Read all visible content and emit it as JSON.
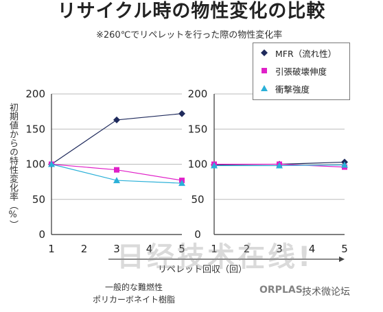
{
  "header": {
    "title": "リサイクル時の物性変化の比較",
    "subtitle": "※260℃でリペレットを行った際の物性変化率"
  },
  "chart_data": [
    {
      "type": "line",
      "x": [
        1,
        3,
        5
      ],
      "xlim": [
        1,
        5
      ],
      "xticks": [
        "1",
        "2",
        "3",
        "4",
        "5"
      ],
      "ylim": [
        0,
        200
      ],
      "yticks": [
        "0",
        "50",
        "100",
        "150",
        "200"
      ],
      "series": [
        {
          "name": "MFR（流れ性）",
          "color": "#1f2a5c",
          "marker": "diamond",
          "values": [
            100,
            163,
            172
          ]
        },
        {
          "name": "引張破壊伸度",
          "color": "#e020c8",
          "marker": "square",
          "values": [
            100,
            92,
            77
          ]
        },
        {
          "name": "衝撃強度",
          "color": "#2ab0d8",
          "marker": "triangle",
          "values": [
            100,
            77,
            73
          ]
        }
      ]
    },
    {
      "type": "line",
      "x": [
        1,
        3,
        5
      ],
      "xlim": [
        1,
        5
      ],
      "xticks": [
        "1",
        "2",
        "3",
        "4",
        "5"
      ],
      "ylim": [
        0,
        200
      ],
      "yticks": [
        "0",
        "50",
        "100",
        "150",
        "200"
      ],
      "series": [
        {
          "name": "MFR（流れ性）",
          "color": "#1f2a5c",
          "marker": "diamond",
          "values": [
            99,
            100,
            103
          ]
        },
        {
          "name": "引張破壊伸度",
          "color": "#e020c8",
          "marker": "square",
          "values": [
            100,
            100,
            96
          ]
        },
        {
          "name": "衝撃強度",
          "color": "#2ab0d8",
          "marker": "triangle",
          "values": [
            98,
            98,
            99
          ]
        }
      ]
    }
  ],
  "axes": {
    "ylabel": "初期値からの特性変化率（%）",
    "xlabel": "リペレット回収（回）"
  },
  "legend": {
    "placement": "top-right",
    "items": [
      {
        "label": "MFR（流れ性）",
        "marker": "diamond",
        "color": "#1f2a5c"
      },
      {
        "label": "引張破壊伸度",
        "marker": "square",
        "color": "#e020c8"
      },
      {
        "label": "衝撃強度",
        "marker": "triangle",
        "color": "#2ab0d8"
      }
    ]
  },
  "note": {
    "line1": "一般的な難燃性",
    "line2": "ポリカーボネイト樹脂"
  },
  "watermark": {
    "main": "日经技术在线!",
    "logo": "ORPLAS",
    "forum": "技术微论坛"
  }
}
